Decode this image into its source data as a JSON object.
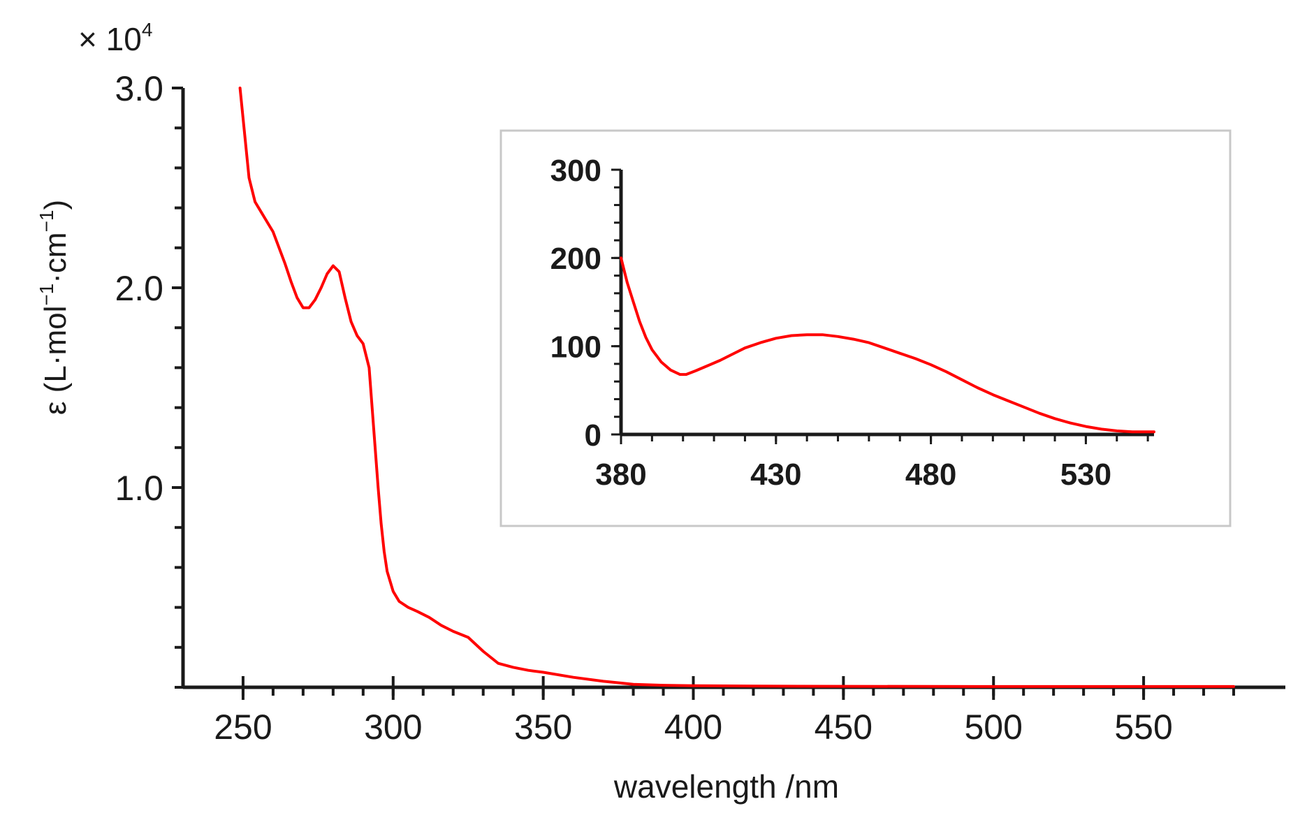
{
  "chart_data": [
    {
      "type": "line",
      "title": "",
      "xlabel": "wavelength /nm",
      "ylabel_parts": {
        "prefix": "ε (L·mol",
        "exp1": "−1",
        "mid": "·cm",
        "exp2": "−1",
        "suffix": ")"
      },
      "y_multiplier": {
        "base": "× 10",
        "exp": "4"
      },
      "xlim": [
        230,
        580
      ],
      "ylim": [
        0,
        3.0
      ],
      "x_ticks": [
        250,
        300,
        350,
        400,
        450,
        500,
        550
      ],
      "x_tick_labels": [
        "250",
        "300",
        "350",
        "400",
        "450",
        "500",
        "550"
      ],
      "y_ticks": [
        1.0,
        2.0,
        3.0
      ],
      "y_tick_labels": [
        "1.0",
        "2.0",
        "3.0"
      ],
      "line_color": "#ff0000",
      "axis_color": "#1a1a1a",
      "series": [
        {
          "x": [
            249,
            250,
            252,
            254,
            256,
            258,
            260,
            262,
            264,
            266,
            268,
            270,
            272,
            274,
            276,
            278,
            280,
            282,
            284,
            286,
            288,
            290,
            292,
            293,
            294,
            295,
            296,
            297,
            298,
            300,
            302,
            305,
            308,
            312,
            316,
            320,
            325,
            330,
            335,
            340,
            345,
            350,
            360,
            370,
            380,
            390,
            400,
            420,
            450,
            500,
            550,
            580
          ],
          "y": [
            3.0,
            2.85,
            2.55,
            2.43,
            2.38,
            2.33,
            2.28,
            2.2,
            2.12,
            2.03,
            1.95,
            1.9,
            1.9,
            1.94,
            2.0,
            2.07,
            2.11,
            2.08,
            1.95,
            1.83,
            1.76,
            1.72,
            1.6,
            1.4,
            1.2,
            1.0,
            0.82,
            0.68,
            0.58,
            0.48,
            0.43,
            0.4,
            0.38,
            0.35,
            0.31,
            0.28,
            0.25,
            0.18,
            0.12,
            0.1,
            0.085,
            0.075,
            0.05,
            0.03,
            0.015,
            0.01,
            0.008,
            0.006,
            0.005,
            0.004,
            0.004,
            0.004
          ]
        }
      ]
    },
    {
      "type": "line",
      "title": "",
      "xlabel": "",
      "ylabel": "",
      "xlim": [
        380,
        552
      ],
      "ylim": [
        0,
        300
      ],
      "x_ticks": [
        380,
        430,
        480,
        530
      ],
      "x_tick_labels": [
        "380",
        "430",
        "480",
        "530"
      ],
      "y_ticks": [
        0,
        100,
        200,
        300
      ],
      "y_tick_labels": [
        "0",
        "100",
        "200",
        "300"
      ],
      "line_color": "#ff0000",
      "axis_color": "#1a1a1a",
      "series": [
        {
          "x": [
            380,
            382,
            384,
            386,
            388,
            390,
            393,
            396,
            399,
            401,
            404,
            408,
            412,
            416,
            420,
            425,
            430,
            435,
            440,
            445,
            450,
            455,
            460,
            465,
            470,
            475,
            480,
            485,
            490,
            495,
            500,
            505,
            510,
            515,
            520,
            525,
            530,
            535,
            540,
            545,
            550,
            552
          ],
          "y": [
            200,
            172,
            150,
            128,
            110,
            96,
            82,
            73,
            68,
            68,
            72,
            78,
            84,
            91,
            98,
            104,
            109,
            112,
            113,
            113,
            111,
            108,
            104,
            98,
            92,
            86,
            79,
            71,
            62,
            53,
            45,
            38,
            31,
            24,
            18,
            13,
            9,
            6,
            4,
            3,
            3,
            3
          ]
        }
      ]
    }
  ]
}
